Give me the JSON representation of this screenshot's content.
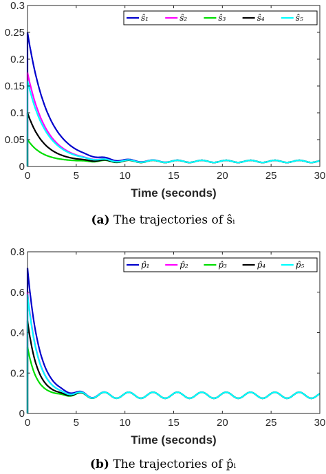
{
  "captions": [
    {
      "tag": "(a)",
      "text": "The trajectories of ŝᵢ"
    },
    {
      "tag": "(b)",
      "text": "The trajectories of p̂ᵢ"
    }
  ],
  "chart_data": [
    {
      "type": "line",
      "title": "",
      "xlabel": "Time (seconds)",
      "ylabel": "",
      "xlim": [
        0,
        30
      ],
      "ylim": [
        0,
        0.3
      ],
      "xticks": [
        "0",
        "5",
        "10",
        "15",
        "20",
        "25",
        "30"
      ],
      "yticks": [
        "0",
        "0.05",
        "0.1",
        "0.15",
        "0.2",
        "0.25",
        "0.3"
      ],
      "grid": false,
      "legend": "top-right, horizontal",
      "steady": {
        "value": 0.0095,
        "amplitude": 0.002,
        "period": 2.5,
        "start": 7
      },
      "series": [
        {
          "name": "ŝ₁",
          "color": "#0000cc",
          "start": 0.25,
          "end": 0.0095,
          "tau": 2.1
        },
        {
          "name": "ŝ₂",
          "color": "#ff00ff",
          "start": 0.175,
          "end": 0.0095,
          "tau": 1.9
        },
        {
          "name": "ŝ₃",
          "color": "#00dd00",
          "start": 0.05,
          "end": 0.0095,
          "tau": 1.5
        },
        {
          "name": "ŝ₄",
          "color": "#000000",
          "start": 0.1,
          "end": 0.0095,
          "tau": 1.7
        },
        {
          "name": "ŝ₅",
          "color": "#00ffff",
          "start": 0.16,
          "end": 0.0095,
          "tau": 1.9
        }
      ]
    },
    {
      "type": "line",
      "title": "",
      "xlabel": "Time (seconds)",
      "ylabel": "",
      "xlim": [
        0,
        30
      ],
      "ylim": [
        0,
        0.8
      ],
      "xticks": [
        "0",
        "5",
        "10",
        "15",
        "20",
        "25",
        "30"
      ],
      "yticks": [
        "0",
        "0.2",
        "0.4",
        "0.6",
        "0.8"
      ],
      "grid": false,
      "legend": "top-right, horizontal",
      "steady": {
        "value": 0.085,
        "amplitude": 0.015,
        "period": 2.5,
        "start": 5
      },
      "series": [
        {
          "name": "p̂₁",
          "color": "#0000cc",
          "start": 0.72,
          "end": 0.09,
          "tau": 1.2
        },
        {
          "name": "p̂₂",
          "color": "#ff00ff",
          "start": 0.6,
          "end": 0.09,
          "tau": 1.1
        },
        {
          "name": "p̂₃",
          "color": "#00dd00",
          "start": 0.33,
          "end": 0.09,
          "tau": 0.9
        },
        {
          "name": "p̂₄",
          "color": "#000000",
          "start": 0.46,
          "end": 0.09,
          "tau": 1.0
        },
        {
          "name": "p̂₅",
          "color": "#00ffff",
          "start": 0.59,
          "end": 0.09,
          "tau": 1.1
        }
      ]
    }
  ]
}
